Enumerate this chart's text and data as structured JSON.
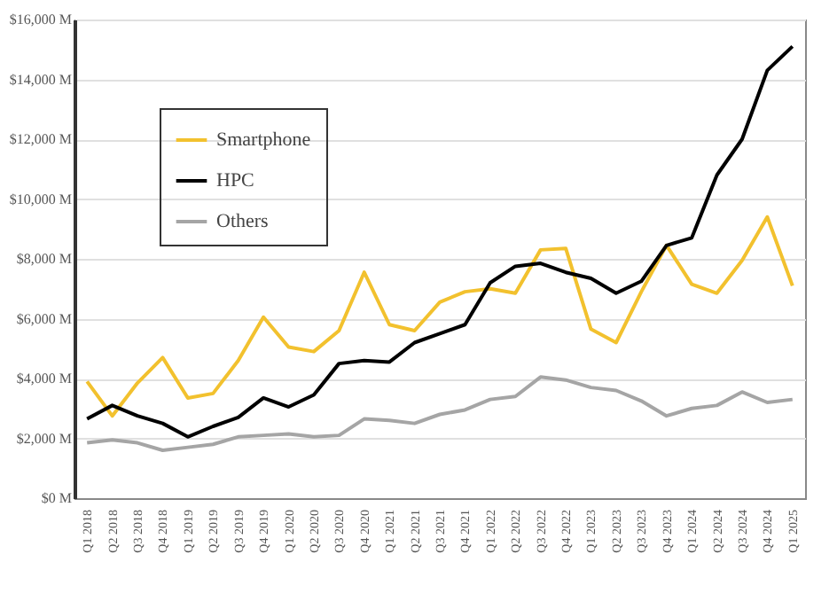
{
  "chart_data": {
    "type": "line",
    "categories": [
      "Q1 2018",
      "Q2 2018",
      "Q3 2018",
      "Q4 2018",
      "Q1 2019",
      "Q2 2019",
      "Q3 2019",
      "Q4 2019",
      "Q1 2020",
      "Q2 2020",
      "Q3 2020",
      "Q4 2020",
      "Q1 2021",
      "Q2 2021",
      "Q3 2021",
      "Q4 2021",
      "Q1 2022",
      "Q2 2022",
      "Q3 2022",
      "Q4 2022",
      "Q1 2023",
      "Q2 2023",
      "Q3 2023",
      "Q4 2023",
      "Q1 2024",
      "Q2 2024",
      "Q3 2024",
      "Q4 2024",
      "Q1 2025"
    ],
    "series": [
      {
        "name": "Smartphone",
        "color": "#f2c12e",
        "values": [
          3900,
          2750,
          3850,
          4700,
          3350,
          3500,
          4600,
          6050,
          5050,
          4900,
          5600,
          7550,
          5800,
          5600,
          6550,
          6900,
          7000,
          6850,
          8300,
          8350,
          5650,
          5200,
          6900,
          8450,
          7150,
          6850,
          7950,
          9400,
          7100
        ]
      },
      {
        "name": "HPC",
        "color": "#000000",
        "values": [
          2650,
          3100,
          2750,
          2500,
          2050,
          2400,
          2700,
          3350,
          3050,
          3450,
          4500,
          4600,
          4550,
          5200,
          5500,
          5800,
          7200,
          7750,
          7850,
          7550,
          7350,
          6850,
          7250,
          8450,
          8700,
          10800,
          12000,
          14300,
          15100
        ]
      },
      {
        "name": "Others",
        "color": "#a5a5a5",
        "values": [
          1850,
          1950,
          1850,
          1600,
          1700,
          1800,
          2050,
          2100,
          2150,
          2050,
          2100,
          2650,
          2600,
          2500,
          2800,
          2950,
          3300,
          3400,
          4050,
          3950,
          3700,
          3600,
          3250,
          2750,
          3000,
          3100,
          3550,
          3200,
          3300
        ]
      }
    ],
    "ylim": [
      0,
      16000
    ],
    "yticks": [
      {
        "value": 0,
        "label": "$0 M"
      },
      {
        "value": 2000,
        "label": "$2,000 M"
      },
      {
        "value": 4000,
        "label": "$4,000 M"
      },
      {
        "value": 6000,
        "label": "$6,000 M"
      },
      {
        "value": 8000,
        "label": "$8,000 M"
      },
      {
        "value": 10000,
        "label": "$10,000 M"
      },
      {
        "value": 12000,
        "label": "$12,000 M"
      },
      {
        "value": 14000,
        "label": "$14,000 M"
      },
      {
        "value": 16000,
        "label": "$16,000 M"
      }
    ],
    "grid": "y",
    "legend": "top left",
    "marker": "none",
    "line_style": "solid"
  }
}
